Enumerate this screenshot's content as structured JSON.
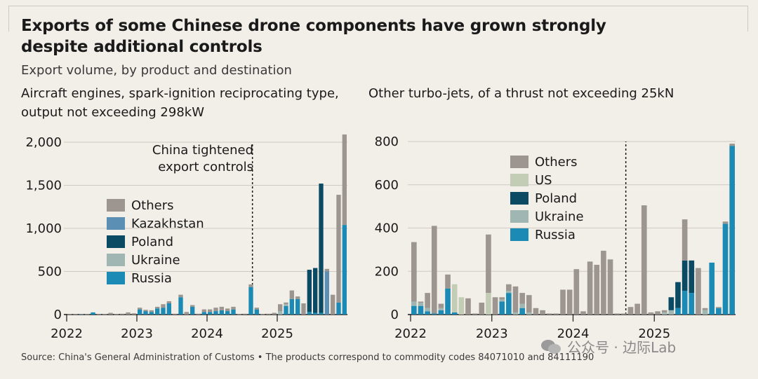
{
  "title": "Exports of some Chinese drone components have grown strongly despite additional controls",
  "subtitle": "Export volume, by product and destination",
  "annotation": "China tightened export controls",
  "footer": "Source: China's General Administration of Customs • The products correspond to commodity codes 84071010 and 84111190",
  "watermark": "公众号 · 边际Lab",
  "colors": {
    "Others": "#9d9690",
    "Kazakhstan": "#5b8fb3",
    "Poland": "#0b4a63",
    "Ukraine": "#9fb6b2",
    "Russia": "#1b8ab5",
    "US": "#c3cdb5"
  },
  "chart_data": [
    {
      "type": "bar",
      "stacked": true,
      "title": "Aircraft engines, spark-ignition reciprocating type, output not exceeding 298kW",
      "ylim": [
        0,
        2000
      ],
      "yticks": [
        0,
        500,
        1000,
        1500,
        2000
      ],
      "ytick_labels": [
        "0",
        "500",
        "1,000",
        "1,500",
        "2,000"
      ],
      "xtick_labels": [
        "2022",
        "2023",
        "2024",
        "2025"
      ],
      "series_order": [
        "Russia",
        "Ukraine",
        "Poland",
        "Kazakhstan",
        "Others"
      ],
      "legend": [
        "Others",
        "Kazakhstan",
        "Poland",
        "Ukraine",
        "Russia"
      ],
      "months": 48,
      "control_month": 32,
      "stacks": [
        {
          "Others": 5
        },
        {
          "Others": 5
        },
        {
          "Russia": 5,
          "Others": 3
        },
        {
          "Others": 5
        },
        {
          "Russia": 25
        },
        {
          "Others": 5
        },
        {
          "Others": 5
        },
        {
          "Others": 20
        },
        {
          "Others": 5
        },
        {
          "Others": 10
        },
        {
          "Others": 25
        },
        {
          "Others": 15
        },
        {
          "Russia": 60,
          "Others": 20
        },
        {
          "Russia": 40,
          "Others": 15
        },
        {
          "Russia": 30,
          "Others": 20
        },
        {
          "Russia": 70,
          "Others": 20
        },
        {
          "Russia": 80,
          "Others": 40
        },
        {
          "Russia": 130,
          "Others": 25
        },
        {
          "Others": 10
        },
        {
          "Russia": 200,
          "Others": 30
        },
        {
          "Others": 30
        },
        {
          "Russia": 90,
          "Others": 20
        },
        {
          "Others": 10
        },
        {
          "Russia": 30,
          "Others": 30
        },
        {
          "Russia": 30,
          "Others": 30
        },
        {
          "Russia": 40,
          "Others": 40
        },
        {
          "Russia": 50,
          "Others": 40
        },
        {
          "Russia": 40,
          "Others": 30
        },
        {
          "Russia": 60,
          "Others": 30
        },
        {
          "Others": 5
        },
        {
          "Others": 10
        },
        {
          "Russia": 320,
          "Others": 30
        },
        {
          "Russia": 60,
          "Others": 20
        },
        {
          "Others": 5
        },
        {
          "Others": 10
        },
        {
          "Others": 20
        },
        {
          "Ukraine": 40,
          "Others": 80
        },
        {
          "Russia": 100,
          "Ukraine": 20,
          "Others": 20
        },
        {
          "Russia": 180,
          "Others": 100
        },
        {
          "Russia": 180,
          "Others": 30
        },
        {
          "Others": 130
        },
        {
          "Poland": 490,
          "Russia": 30
        },
        {
          "Poland": 520,
          "Russia": 20
        },
        {
          "Poland": 1500,
          "Russia": 20
        },
        {
          "Kazakhstan": 500,
          "Others": 30
        },
        {
          "Others": 230
        },
        {
          "Russia": 140,
          "Others": 1250
        },
        {
          "Russia": 1040,
          "Others": 1050
        }
      ]
    },
    {
      "type": "bar",
      "stacked": true,
      "title": "Other turbo-jets, of a thrust not exceeding 25kN",
      "ylim": [
        0,
        800
      ],
      "yticks": [
        0,
        200,
        400,
        600,
        800
      ],
      "ytick_labels": [
        "0",
        "200",
        "400",
        "600",
        "800"
      ],
      "xtick_labels": [
        "2022",
        "2023",
        "2024",
        "2025"
      ],
      "series_order": [
        "Russia",
        "Ukraine",
        "Poland",
        "US",
        "Others"
      ],
      "legend": [
        "Others",
        "US",
        "Poland",
        "Ukraine",
        "Russia"
      ],
      "months": 48,
      "control_month": 32,
      "stacks": [
        {
          "Russia": 40,
          "Ukraine": 20,
          "Others": 275
        },
        {
          "Russia": 40,
          "Ukraine": 15,
          "Others": 5
        },
        {
          "Russia": 15,
          "Ukraine": 15,
          "Others": 70
        },
        {
          "Russia": 5,
          "Others": 405
        },
        {
          "Russia": 20,
          "Ukraine": 10,
          "Others": 20
        },
        {
          "Russia": 120,
          "Others": 65
        },
        {
          "Russia": 10,
          "US": 130
        },
        {
          "US": 80
        },
        {
          "Others": 75
        },
        {
          "Others": 5
        },
        {
          "Others": 55
        },
        {
          "US": 100,
          "Others": 270
        },
        {
          "Others": 80
        },
        {
          "Russia": 60,
          "Ukraine": 10,
          "Others": 10
        },
        {
          "Russia": 100,
          "Ukraine": 10,
          "Others": 30
        },
        {
          "Ukraine": 10,
          "Others": 120
        },
        {
          "Russia": 30,
          "Ukraine": 20,
          "Others": 50
        },
        {
          "Ukraine": 10,
          "Others": 80
        },
        {
          "Others": 30
        },
        {
          "Others": 20
        },
        {
          "Others": 5
        },
        {
          "Others": 5
        },
        {
          "Others": 115
        },
        {
          "Others": 115
        },
        {
          "Others": 210
        },
        {
          "Others": 15
        },
        {
          "Others": 245
        },
        {
          "Others": 230
        },
        {
          "Others": 295
        },
        {
          "Others": 255
        },
        {
          "Others": 5
        },
        {
          "Others": 5
        },
        {
          "Others": 35
        },
        {
          "Others": 50
        },
        {
          "Others": 505
        },
        {
          "Others": 10
        },
        {
          "Others": 15
        },
        {
          "Ukraine": 10,
          "Others": 10
        },
        {
          "Poland": 60,
          "Ukraine": 20
        },
        {
          "Russia": 30,
          "Poland": 120
        },
        {
          "Russia": 110,
          "Poland": 140,
          "Others": 190
        },
        {
          "Russia": 100,
          "Poland": 150
        },
        {
          "Others": 215
        },
        {
          "Ukraine": 20,
          "Others": 10
        },
        {
          "Russia": 240
        },
        {
          "Russia": 30,
          "Others": 5
        },
        {
          "Russia": 420,
          "Others": 10
        },
        {
          "Russia": 780,
          "Others": 10
        }
      ]
    }
  ]
}
